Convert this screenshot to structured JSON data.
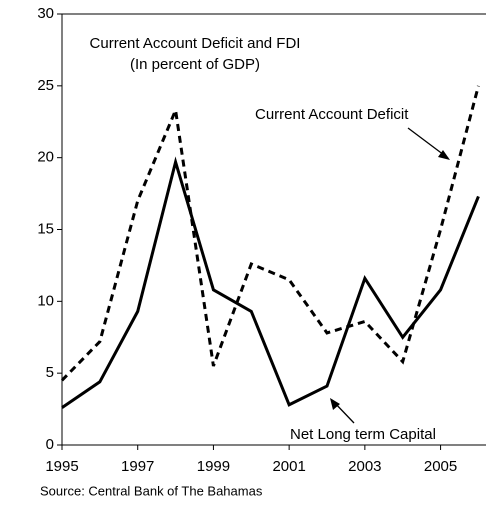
{
  "chart_data": {
    "type": "line",
    "title": "Current Account Deficit and FDI",
    "subtitle": "(In percent of GDP)",
    "source": "Source: Central Bank of The Bahamas",
    "x": [
      1995,
      1996,
      1997,
      1998,
      1999,
      2000,
      2001,
      2002,
      2003,
      2004,
      2005,
      2006
    ],
    "series": [
      {
        "name": "Current Account Deficit",
        "color": "#000000",
        "dash": true,
        "values": [
          4.5,
          7.2,
          17,
          23.3,
          5.5,
          12.6,
          11.5,
          7.8,
          8.6,
          5.8,
          15,
          25
        ]
      },
      {
        "name": "Net Long term Capital",
        "color": "#000000",
        "dash": false,
        "values": [
          2.6,
          4.4,
          9.3,
          19.7,
          10.8,
          9.3,
          2.8,
          4.1,
          11.6,
          7.5,
          10.8,
          17.3
        ]
      }
    ],
    "xlim": [
      1995,
      2006.2
    ],
    "xticks": [
      1995,
      1997,
      1999,
      2001,
      2003,
      2005
    ],
    "ylim": [
      0,
      30
    ],
    "yticks": [
      0,
      5,
      10,
      15,
      20,
      25,
      30
    ],
    "grid": false
  }
}
